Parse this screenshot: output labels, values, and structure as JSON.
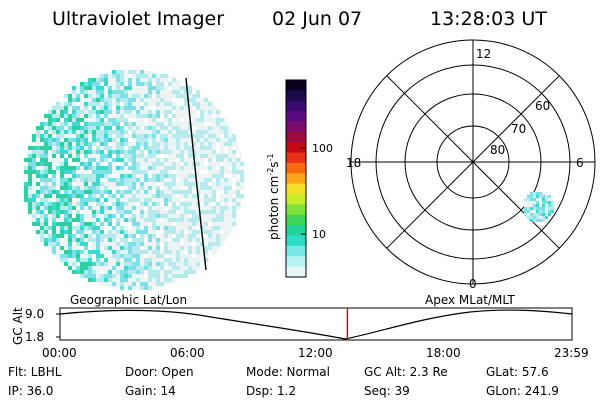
{
  "header": {
    "instrument": "Ultraviolet Imager",
    "date": "02 Jun 07",
    "time": "13:28:03 UT"
  },
  "colorbar": {
    "unit_label": "photon cm",
    "unit_sup1": "-2",
    "unit_mid": "s",
    "unit_sup2": "-1",
    "ticks": [
      "100",
      "10"
    ],
    "colors": [
      "#0a0320",
      "#1c0a4a",
      "#3a0a6e",
      "#5a0a80",
      "#7a0a6a",
      "#9a0a3a",
      "#c40a14",
      "#e8321a",
      "#f66a12",
      "#fba51a",
      "#f6df2a",
      "#c8ee2a",
      "#7ee03a",
      "#3ed45a",
      "#22d49a",
      "#30dcc8",
      "#7ae8e8",
      "#b8f2f2",
      "#e8f6f6"
    ]
  },
  "left_panel": {
    "label": "Geographic Lat/Lon",
    "colors": {
      "fill": "#ecf4f4",
      "light": "#b6eaec",
      "mid": "#7ce0e6",
      "strong": "#3ed8d0",
      "green": "#2ecfa0"
    }
  },
  "right_panel": {
    "label": "Apex MLat/MLT",
    "mlt_labels": {
      "top": "12",
      "left": "18",
      "right": "6",
      "bottom": "0"
    },
    "mlat_labels": [
      "60",
      "70",
      "80"
    ]
  },
  "timeline": {
    "axis_label": "GC Alt",
    "y_ticks": [
      "9.0",
      "1.8"
    ],
    "x_ticks": [
      "00:00",
      "06:00",
      "12:00",
      "18:00",
      "23:59"
    ],
    "marker_time_hours": 13.47,
    "marker_color": "#cc0000"
  },
  "footer": {
    "row1": [
      "Flt: LBHL",
      "Door: Open",
      "Mode: Normal",
      "GC Alt: 2.3 Re",
      "GLat:  57.6"
    ],
    "row2": [
      "IP: 36.0",
      "Gain: 14",
      "Dsp:    1.2",
      "Seq: 39",
      "GLon: 241.9"
    ]
  }
}
